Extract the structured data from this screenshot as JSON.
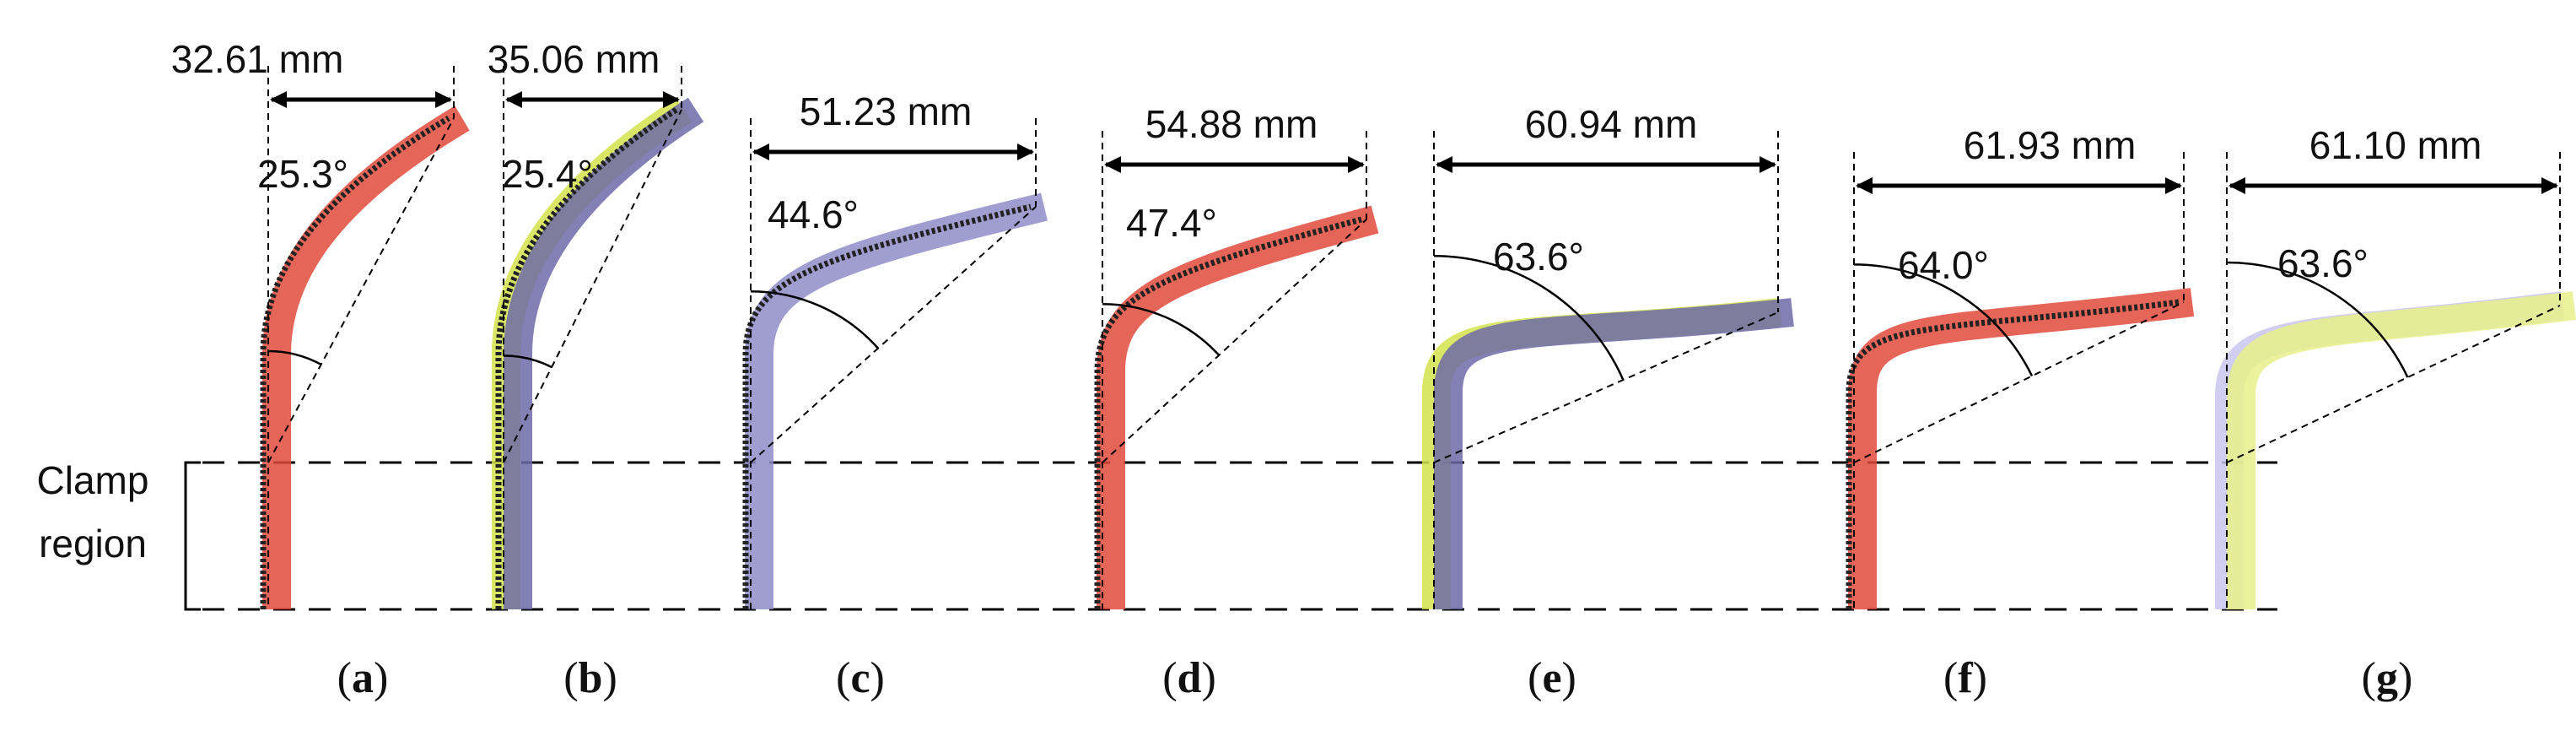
{
  "figure": {
    "clamp_label_line1": "Clamp",
    "clamp_label_line2": "region",
    "panels": [
      {
        "id": "a",
        "label": "a",
        "width": "32.61 mm",
        "angle": "25.3°",
        "tilt_deg": 25.3,
        "colors": [
          "#e24a3c"
        ],
        "tracer": "#222222"
      },
      {
        "id": "b",
        "label": "b",
        "width": "35.06 mm",
        "angle": "25.4°",
        "tilt_deg": 25.4,
        "colors": [
          "#d4e24a",
          "#6d6aa8"
        ],
        "tracer": "#222222"
      },
      {
        "id": "c",
        "label": "c",
        "width": "51.23 mm",
        "angle": "44.6°",
        "tilt_deg": 44.6,
        "colors": [
          "#8f8cc8"
        ],
        "tracer": "#222222"
      },
      {
        "id": "d",
        "label": "d",
        "width": "54.88 mm",
        "angle": "47.4°",
        "tilt_deg": 47.4,
        "colors": [
          "#e24a3c"
        ],
        "tracer": "#222222"
      },
      {
        "id": "e",
        "label": "e",
        "width": "60.94 mm",
        "angle": "63.6°",
        "tilt_deg": 63.6,
        "colors": [
          "#d4e24a",
          "#6d6aa8"
        ],
        "tracer": "none"
      },
      {
        "id": "f",
        "label": "f",
        "width": "61.93 mm",
        "angle": "64.0°",
        "tilt_deg": 64.0,
        "colors": [
          "#e24a3c"
        ],
        "tracer": "#222222"
      },
      {
        "id": "g",
        "label": "g",
        "width": "61.10 mm",
        "angle": "63.6°",
        "tilt_deg": 63.6,
        "colors": [
          "#c9c6ee",
          "#e8f08a"
        ],
        "tracer": "none"
      }
    ]
  }
}
